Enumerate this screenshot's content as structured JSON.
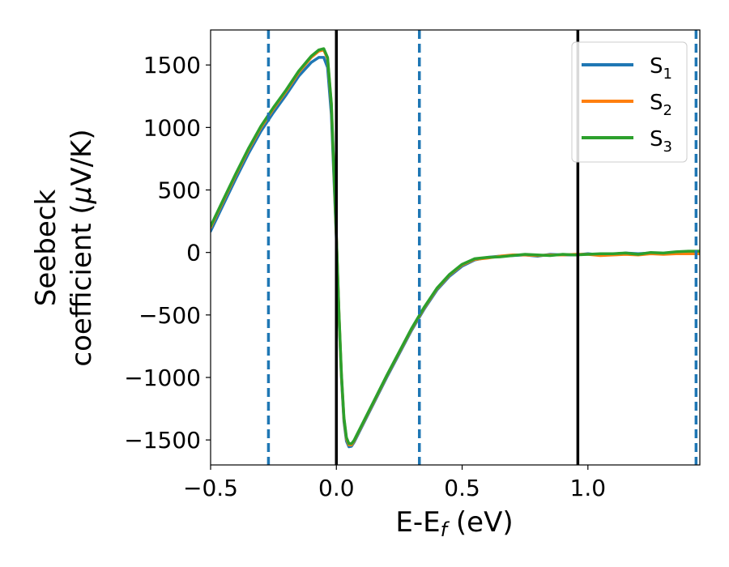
{
  "chart_data": {
    "type": "line",
    "xlabel_main": "E-E",
    "xlabel_sub": "f",
    "xlabel_unit": " (eV)",
    "ylabel_line1": "Seebeck",
    "ylabel_line2_pre": "coefficient  (",
    "ylabel_mu": "μ",
    "ylabel_line2_post": "V/K)",
    "xlim": [
      -0.5,
      1.445
    ],
    "ylim": [
      -1700,
      1780
    ],
    "xticks": [
      -0.5,
      0.0,
      0.5,
      1.0
    ],
    "xtick_labels": [
      "−0.5",
      "0.0",
      "0.5",
      "1.0"
    ],
    "yticks": [
      -1500,
      -1000,
      -500,
      0,
      500,
      1000,
      1500
    ],
    "ytick_labels": [
      "−1500",
      "−1000",
      "−500",
      "0",
      "500",
      "1000",
      "1500"
    ],
    "vlines_solid": [
      0.0,
      0.96
    ],
    "vlines_dashed": [
      -0.27,
      0.33,
      1.43
    ],
    "legend_position": "top-right",
    "series": [
      {
        "name": "S",
        "subscript": "1",
        "color": "#1f77b4",
        "x": [
          -0.5,
          -0.45,
          -0.4,
          -0.35,
          -0.3,
          -0.25,
          -0.2,
          -0.15,
          -0.1,
          -0.07,
          -0.05,
          -0.035,
          -0.02,
          -0.01,
          0.0,
          0.01,
          0.02,
          0.03,
          0.04,
          0.05,
          0.06,
          0.07,
          0.08,
          0.1,
          0.15,
          0.2,
          0.25,
          0.3,
          0.35,
          0.4,
          0.45,
          0.5,
          0.55,
          0.6,
          0.65,
          0.7,
          0.75,
          0.8,
          0.85,
          0.9,
          0.95,
          1.0,
          1.05,
          1.1,
          1.15,
          1.2,
          1.25,
          1.3,
          1.35,
          1.4,
          1.445
        ],
        "y": [
          170,
          380,
          590,
          790,
          970,
          1120,
          1260,
          1410,
          1520,
          1560,
          1560,
          1480,
          1100,
          600,
          100,
          -500,
          -1000,
          -1350,
          -1510,
          -1555,
          -1550,
          -1520,
          -1480,
          -1400,
          -1200,
          -1000,
          -810,
          -620,
          -450,
          -300,
          -190,
          -110,
          -60,
          -40,
          -30,
          -25,
          -20,
          -30,
          -15,
          -20,
          -20,
          -10,
          -20,
          -15,
          -5,
          -10,
          -5,
          -10,
          0,
          5,
          0
        ]
      },
      {
        "name": "S",
        "subscript": "2",
        "color": "#ff7f0e",
        "x": [
          -0.5,
          -0.45,
          -0.4,
          -0.35,
          -0.3,
          -0.25,
          -0.2,
          -0.15,
          -0.1,
          -0.07,
          -0.05,
          -0.035,
          -0.02,
          -0.01,
          0.0,
          0.01,
          0.02,
          0.03,
          0.04,
          0.05,
          0.06,
          0.07,
          0.08,
          0.1,
          0.15,
          0.2,
          0.25,
          0.3,
          0.35,
          0.4,
          0.45,
          0.5,
          0.55,
          0.6,
          0.65,
          0.7,
          0.75,
          0.8,
          0.85,
          0.9,
          0.95,
          1.0,
          1.05,
          1.1,
          1.15,
          1.2,
          1.25,
          1.3,
          1.35,
          1.4,
          1.445
        ],
        "y": [
          200,
          410,
          620,
          820,
          1000,
          1150,
          1290,
          1440,
          1560,
          1610,
          1620,
          1550,
          1180,
          650,
          120,
          -480,
          -980,
          -1330,
          -1490,
          -1540,
          -1540,
          -1510,
          -1470,
          -1390,
          -1190,
          -990,
          -800,
          -610,
          -440,
          -290,
          -180,
          -100,
          -55,
          -45,
          -30,
          -20,
          -20,
          -25,
          -20,
          -20,
          -15,
          -15,
          -25,
          -20,
          -15,
          -20,
          -10,
          -15,
          -10,
          -10,
          -10
        ]
      },
      {
        "name": "S",
        "subscript": "3",
        "color": "#2ca02c",
        "x": [
          -0.5,
          -0.45,
          -0.4,
          -0.35,
          -0.3,
          -0.25,
          -0.2,
          -0.15,
          -0.1,
          -0.07,
          -0.05,
          -0.035,
          -0.02,
          -0.01,
          0.0,
          0.01,
          0.02,
          0.03,
          0.04,
          0.05,
          0.06,
          0.07,
          0.08,
          0.1,
          0.15,
          0.2,
          0.25,
          0.3,
          0.35,
          0.4,
          0.45,
          0.5,
          0.55,
          0.6,
          0.65,
          0.7,
          0.75,
          0.8,
          0.85,
          0.9,
          0.95,
          1.0,
          1.05,
          1.1,
          1.15,
          1.2,
          1.25,
          1.3,
          1.35,
          1.4,
          1.445
        ],
        "y": [
          210,
          420,
          630,
          830,
          1010,
          1160,
          1300,
          1450,
          1570,
          1620,
          1630,
          1560,
          1190,
          660,
          130,
          -470,
          -970,
          -1320,
          -1480,
          -1530,
          -1530,
          -1505,
          -1465,
          -1385,
          -1185,
          -985,
          -795,
          -605,
          -435,
          -285,
          -175,
          -95,
          -50,
          -40,
          -35,
          -25,
          -15,
          -20,
          -25,
          -15,
          -20,
          -15,
          -10,
          -10,
          -5,
          -15,
          0,
          -5,
          5,
          10,
          10
        ]
      }
    ]
  }
}
